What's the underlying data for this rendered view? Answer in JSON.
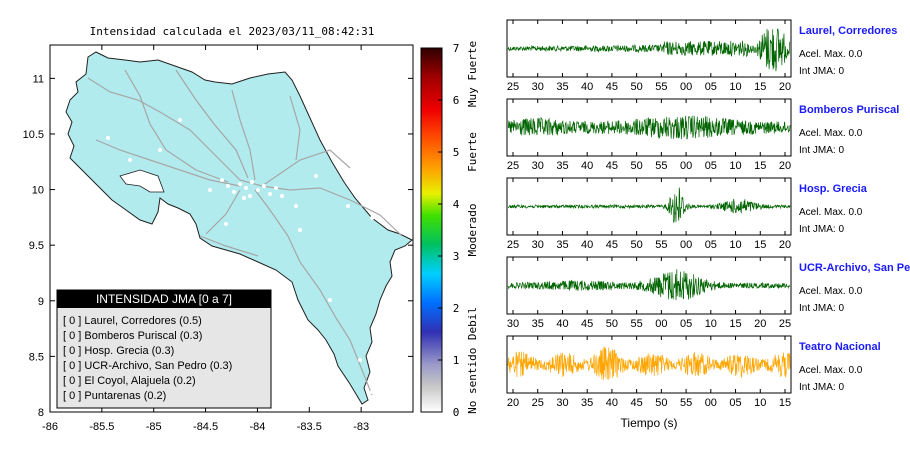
{
  "map": {
    "title": "Intensidad calculada el 2023/03/11_08:42:31",
    "x_ticks": [
      "-86",
      "-85.5",
      "-85",
      "-84.5",
      "-84",
      "-83.5",
      "-83"
    ],
    "y_ticks": [
      "11",
      "10.5",
      "10",
      "9.5",
      "9",
      "8.5",
      "8"
    ],
    "xlim": [
      -86,
      -82.5
    ],
    "ylim": [
      8,
      11.3
    ],
    "land_color": "#b2ebee",
    "road_color": "#a6a6a6",
    "legend": {
      "header": "INTENSIDAD JMA [0 a 7]",
      "items": [
        "[ 0 ]  Laurel, Corredores (0.5)",
        "[ 0 ]  Bomberos Puriscal (0.3)",
        "[ 0 ]  Hosp. Grecia (0.3)",
        "[ 0 ]  UCR-Archivo, San Pedro (0.3)",
        "[ 0 ]  El Coyol, Alajuela (0.2)",
        "[ 0 ]  Puntarenas (0.2)"
      ]
    }
  },
  "colorbar": {
    "ticks": [
      "7",
      "6",
      "5",
      "4",
      "3",
      "2",
      "1",
      "0"
    ],
    "range": [
      0,
      7
    ],
    "labels": [
      "Muy Fuerte",
      "Fuerte",
      "Moderado",
      "Debil",
      "No sentido"
    ]
  },
  "waveforms": {
    "xlabel": "Tiempo (s)",
    "traces": [
      {
        "station": "Laurel, Corredores",
        "acel": "Acel. Max. 0.0",
        "jma": "Int JMA: 0",
        "ticks": [
          "25",
          "30",
          "35",
          "40",
          "45",
          "50",
          "55",
          "00",
          "05",
          "10",
          "15",
          "20"
        ],
        "color": "#006400",
        "profile": "end"
      },
      {
        "station": "Bomberos Puriscal",
        "acel": "Acel. Max. 0.0",
        "jma": "Int JMA: 0",
        "ticks": [
          "25",
          "30",
          "35",
          "40",
          "45",
          "50",
          "55",
          "00",
          "05",
          "10",
          "15",
          "20"
        ],
        "color": "#006400",
        "profile": "wide"
      },
      {
        "station": "Hosp. Grecia",
        "acel": "Acel. Max. 0.0",
        "jma": "Int JMA: 0",
        "ticks": [
          "25",
          "30",
          "35",
          "40",
          "45",
          "50",
          "55",
          "00",
          "05",
          "10",
          "15",
          "20"
        ],
        "color": "#006400",
        "profile": "spike"
      },
      {
        "station": "UCR-Archivo, San Pedro",
        "acel": "Acel. Max. 0.0",
        "jma": "Int JMA: 0",
        "ticks": [
          "30",
          "35",
          "40",
          "45",
          "50",
          "55",
          "00",
          "05",
          "10",
          "15",
          "20",
          "25"
        ],
        "color": "#006400",
        "profile": "mid"
      },
      {
        "station": "Teatro Nacional",
        "acel": "Acel. Max. 0.0",
        "jma": "Int JMA: 0",
        "ticks": [
          "20",
          "25",
          "30",
          "35",
          "40",
          "45",
          "50",
          "55",
          "00",
          "05",
          "10",
          "15"
        ],
        "color": "#ffa500",
        "profile": "noise"
      }
    ]
  },
  "chart_data": [
    {
      "type": "map",
      "title": "Intensidad calculada el 2023/03/11_08:42:31",
      "xlim": [
        -86,
        -82.5
      ],
      "ylim": [
        8,
        11.3
      ],
      "legend_title": "INTENSIDAD JMA [0 a 7]",
      "stations": [
        {
          "name": "Laurel, Corredores",
          "jma": 0,
          "value": 0.5
        },
        {
          "name": "Bomberos Puriscal",
          "jma": 0,
          "value": 0.3
        },
        {
          "name": "Hosp. Grecia",
          "jma": 0,
          "value": 0.3
        },
        {
          "name": "UCR-Archivo, San Pedro",
          "jma": 0,
          "value": 0.3
        },
        {
          "name": "El Coyol, Alajuela",
          "jma": 0,
          "value": 0.2
        },
        {
          "name": "Puntarenas",
          "jma": 0,
          "value": 0.2
        }
      ]
    },
    {
      "type": "line",
      "xlabel": "Tiempo (s)",
      "series": [
        {
          "name": "Laurel, Corredores",
          "acel_max": 0.0,
          "int_jma": 0
        },
        {
          "name": "Bomberos Puriscal",
          "acel_max": 0.0,
          "int_jma": 0
        },
        {
          "name": "Hosp. Grecia",
          "acel_max": 0.0,
          "int_jma": 0
        },
        {
          "name": "UCR-Archivo, San Pedro",
          "acel_max": 0.0,
          "int_jma": 0
        },
        {
          "name": "Teatro Nacional",
          "acel_max": 0.0,
          "int_jma": 0
        }
      ]
    }
  ]
}
